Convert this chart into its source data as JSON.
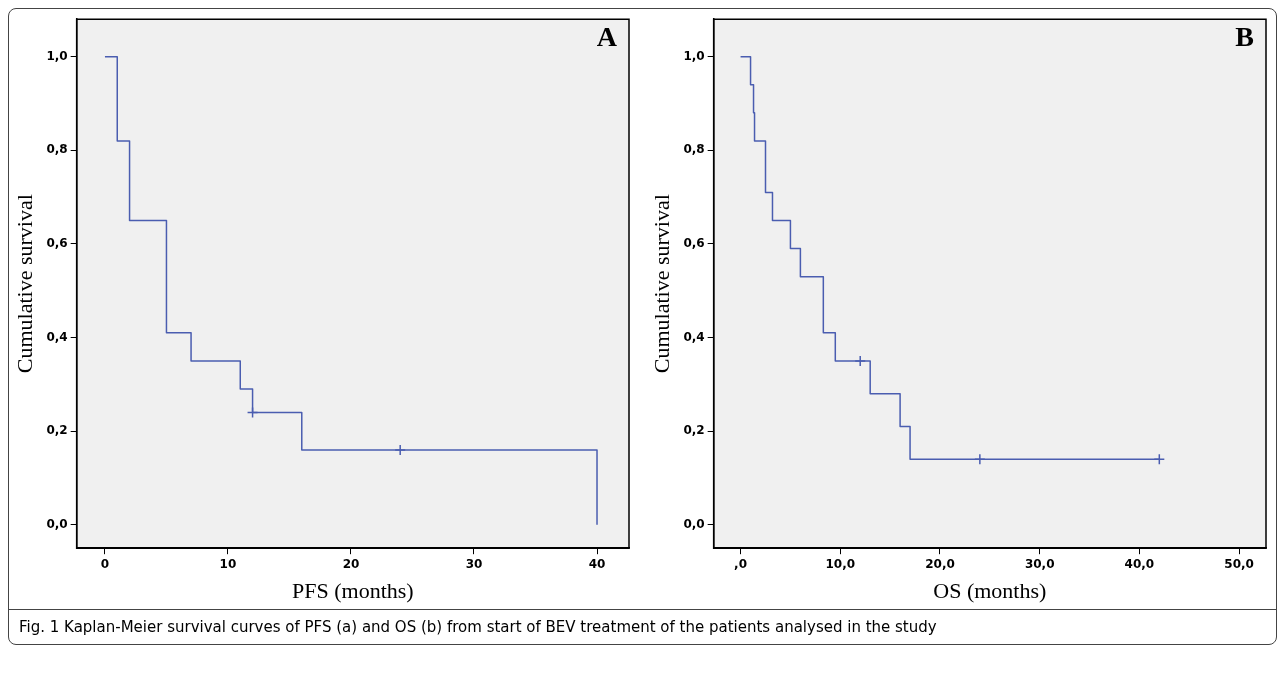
{
  "chart_data": [
    {
      "type": "step",
      "xlabel": "PFS (months)",
      "ylabel": "Cumulative survival",
      "annotations": [
        "A",
        "Fig. 1 Kaplan-Meier survival curves of PFS (a) and OS (b) from start of BEV treatment of the patients analysed in the study"
      ],
      "grid": false,
      "legend": false,
      "xlim": [
        -2.3,
        42.6
      ],
      "xticks": [
        0,
        10,
        20,
        30,
        40
      ],
      "ylim": [
        -0.05,
        1.08
      ],
      "yticks": [
        {
          "value": 0,
          "label": "0,0"
        },
        {
          "value": 0.2,
          "label": "0,2"
        },
        {
          "value": 0.4,
          "label": "0,4"
        },
        {
          "value": 0.6,
          "label": "0,6"
        },
        {
          "value": 0.8,
          "label": "0,8"
        },
        {
          "value": 1,
          "label": "1,0"
        }
      ],
      "series": [
        {
          "color": "#4a5db0",
          "x": [
            0,
            1,
            2,
            5,
            7,
            11,
            12,
            16,
            40
          ],
          "values": [
            1,
            0.82,
            0.65,
            0.41,
            0.35,
            0.29,
            0.24,
            0.16,
            0
          ]
        },
        {
          "type": "scatter",
          "marker": "cross",
          "color": "#4a5db0",
          "x": [
            12,
            24
          ],
          "values": [
            0.24,
            0.16
          ]
        }
      ]
    },
    {
      "type": "step",
      "xlabel": "OS (months)",
      "ylabel": "Cumulative survival",
      "annotations": [
        "B"
      ],
      "grid": false,
      "legend": false,
      "xlim": [
        -2.7,
        52.7
      ],
      "xticks": [
        {
          "value": 0,
          "label": ",0"
        },
        {
          "value": 10,
          "label": "10,0"
        },
        {
          "value": 20,
          "label": "20,0"
        },
        {
          "value": 30,
          "label": "30,0"
        },
        {
          "value": 40,
          "label": "40,0"
        },
        {
          "value": 50,
          "label": "50,0"
        }
      ],
      "ylim": [
        -0.05,
        1.08
      ],
      "yticks": [
        {
          "value": 0,
          "label": "0,0"
        },
        {
          "value": 0.2,
          "label": "0,2"
        },
        {
          "value": 0.4,
          "label": "0,4"
        },
        {
          "value": 0.6,
          "label": "0,6"
        },
        {
          "value": 0.8,
          "label": "0,8"
        },
        {
          "value": 1,
          "label": "1,0"
        }
      ],
      "series": [
        {
          "color": "#4a5db0",
          "x": [
            0,
            1,
            1.3,
            1.4,
            2.5,
            3.2,
            5,
            6,
            8.3,
            9.5,
            13,
            16,
            17,
            42
          ],
          "values": [
            1,
            0.94,
            0.88,
            0.82,
            0.71,
            0.65,
            0.59,
            0.53,
            0.41,
            0.35,
            0.28,
            0.21,
            0.14,
            0.14
          ]
        },
        {
          "type": "scatter",
          "marker": "cross",
          "color": "#4a5db0",
          "x": [
            12,
            24,
            42
          ],
          "values": [
            0.35,
            0.14,
            0.14
          ]
        }
      ]
    }
  ]
}
